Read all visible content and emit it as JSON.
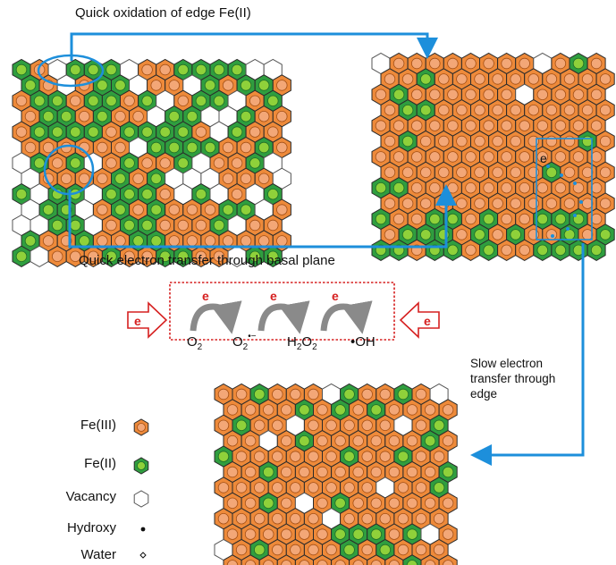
{
  "labels": {
    "top_arrow": "Quick oxidation of edge Fe(II)",
    "middle_arrow": "Quick electron transfer through basal plane",
    "slow_transfer": "Slow electron\ntransfer through\nedge",
    "electron": "e"
  },
  "reaction": {
    "species": [
      "O2",
      "O2•−",
      "H2O2",
      "•OH"
    ],
    "electron_label": "e"
  },
  "legend": [
    {
      "name": "fe3",
      "label": "Fe(III)"
    },
    {
      "name": "fe2",
      "label": "Fe(II)"
    },
    {
      "name": "vacancy",
      "label": "Vacancy"
    },
    {
      "name": "hydroxy",
      "label": "Hydroxy"
    },
    {
      "name": "water",
      "label": "Water"
    }
  ],
  "colors": {
    "fe3_fill": "#ee8a3a",
    "fe3_inner": "#f3a777",
    "fe2_fill": "#2f9e3f",
    "fe2_inner": "#8fd13a",
    "vacancy": "#ffffff",
    "outline": "#2b2b2b",
    "arrow": "#1d8fdb",
    "electron_red": "#d62020",
    "box_border": "#d62020",
    "curved_arrow": "#8a8a8a"
  }
}
